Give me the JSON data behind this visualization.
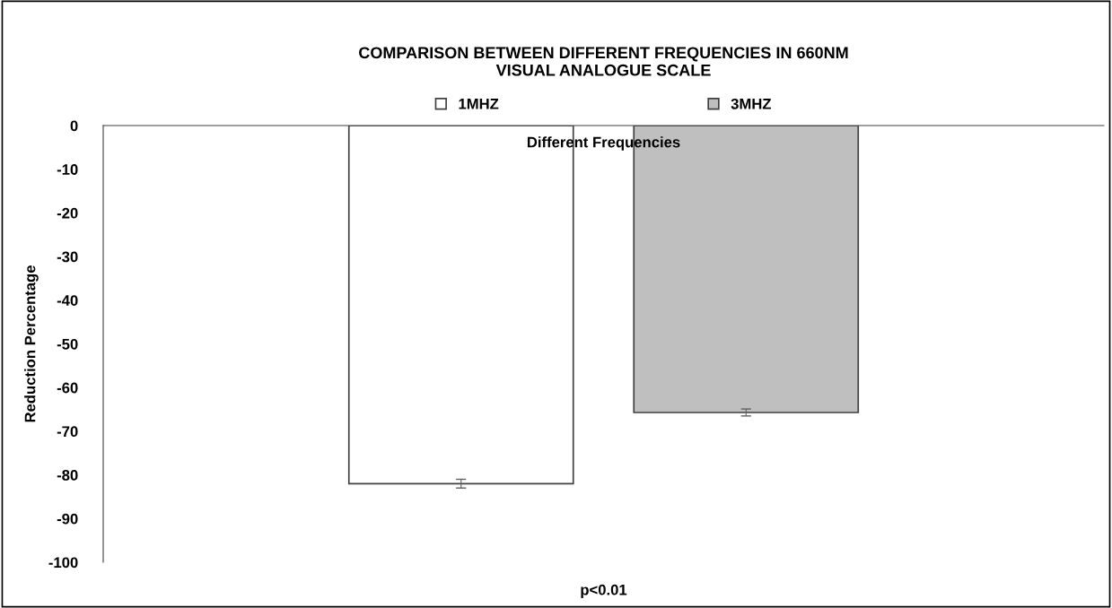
{
  "chart_data": {
    "type": "bar",
    "title": "COMPARISON BETWEEN DIFFERENT FREQUENCIES IN 660NM\nVISUAL ANALOGUE SCALE",
    "xlabel": "Different Frequencies",
    "ylabel": "Reduction Percentage",
    "categories": [
      null
    ],
    "series": [
      {
        "name": "1MHZ",
        "color": "#ffffff",
        "values": [
          -82
        ],
        "errors": [
          1
        ]
      },
      {
        "name": "3MHZ",
        "color": "#bfbfbf",
        "values": [
          -65.7
        ],
        "errors": [
          0.8
        ]
      }
    ],
    "ylim": [
      -100,
      0
    ],
    "yticks": [
      0,
      -10,
      -20,
      -30,
      -40,
      -50,
      -60,
      -70,
      -80,
      -90,
      -100
    ],
    "annotations": [
      "p<0.01"
    ],
    "legend": "top",
    "grid": false
  }
}
